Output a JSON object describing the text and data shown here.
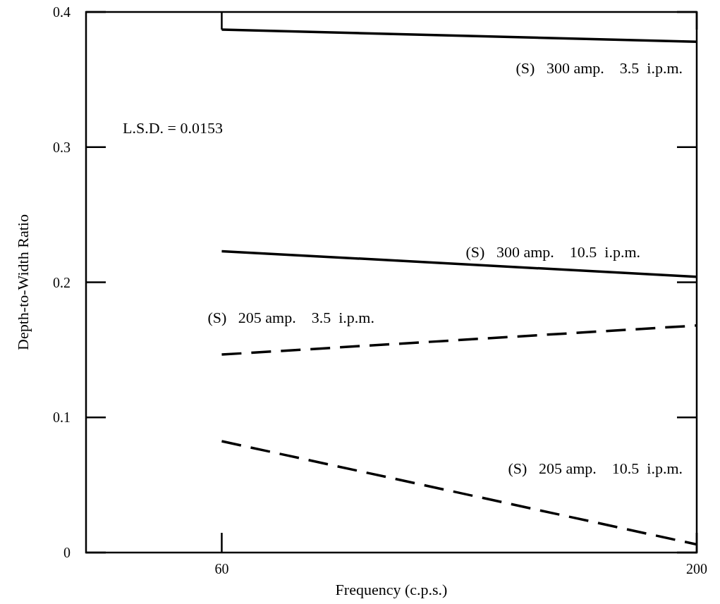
{
  "chart_data": {
    "type": "line",
    "xlabel": "Frequency (c.p.s.)",
    "ylabel": "Depth-to-Width Ratio",
    "xlim": [
      20,
      200
    ],
    "xticks": [
      60,
      200
    ],
    "ylim": [
      0,
      0.4
    ],
    "yticks": [
      0,
      0.1,
      0.2,
      0.3,
      0.4
    ],
    "grid": false,
    "legend": false,
    "marker": "none",
    "annotations": [
      "L.S.D. = 0.0153"
    ],
    "x": [
      60,
      200
    ],
    "series": [
      {
        "name": "(S)   300 amp.    3.5  i.p.m.",
        "color": "#000000",
        "line_style": "solid",
        "values": [
          0.387,
          0.378
        ]
      },
      {
        "name": "(S)   300 amp.    10.5  i.p.m.",
        "color": "#000000",
        "line_style": "solid",
        "values": [
          0.223,
          0.204
        ]
      },
      {
        "name": "(S)   205 amp.    3.5  i.p.m.",
        "color": "#000000",
        "line_style": "dashed",
        "values": [
          0.1465,
          0.168
        ]
      },
      {
        "name": "(S)   205 amp.    10.5  i.p.m.",
        "color": "#000000",
        "line_style": "dashed",
        "values": [
          0.0824,
          0.006
        ]
      }
    ]
  }
}
